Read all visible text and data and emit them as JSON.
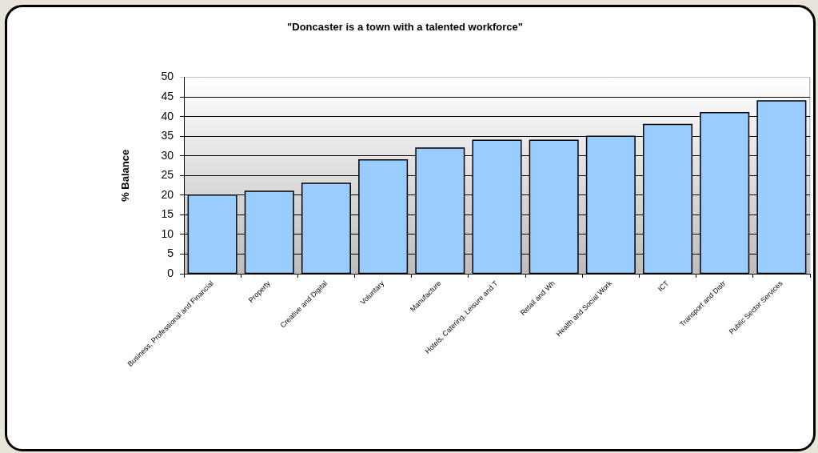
{
  "chart_data": {
    "type": "bar",
    "title": "\"Doncaster is a town with a talented workforce\"",
    "ylabel": "% Balance",
    "categories": [
      "Business, Professional and Financial",
      "Property",
      "Creative and Digital",
      "Voluntary",
      "Manufacture",
      "Hotels, Catering, Leisure and T",
      "Retail and Wh",
      "Health and Social Work",
      "ICT",
      "Transport and Distr",
      "Public Sector Services"
    ],
    "values": [
      20,
      21,
      23,
      29,
      32,
      34,
      34,
      35,
      38,
      41,
      44
    ],
    "color": "#99ccff",
    "ylim": [
      0,
      50
    ],
    "yticks": [
      0,
      5,
      10,
      15,
      20,
      25,
      30,
      35,
      40,
      45,
      50
    ],
    "grid": "y"
  }
}
